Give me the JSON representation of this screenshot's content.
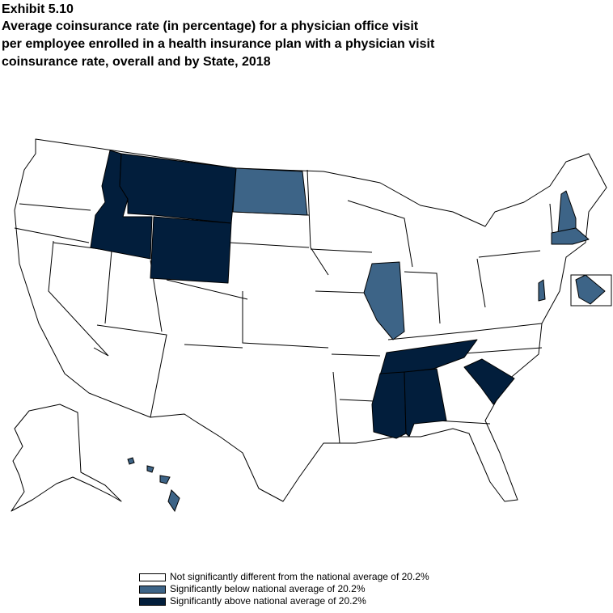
{
  "header": {
    "exhibit": "Exhibit 5.10",
    "title_lines": [
      "Average coinsurance rate (in percentage) for a physician office visit",
      "per employee enrolled in a health insurance plan with a physician visit",
      "coinsurance rate, overall and by State, 2018"
    ]
  },
  "colors": {
    "not_significant": "#ffffff",
    "below": "#3d6487",
    "above": "#021e3c"
  },
  "map": {
    "states_above": [
      "Idaho",
      "Montana",
      "Wyoming",
      "Tennessee",
      "Mississippi",
      "Alabama",
      "South Carolina"
    ],
    "states_below": [
      "North Dakota",
      "Illinois",
      "New Hampshire",
      "Massachusetts",
      "Delaware",
      "Hawaii",
      "District of Columbia"
    ]
  },
  "legend": {
    "items": [
      {
        "key": "not_significant",
        "label": "Not significantly different from the national average of 20.2%"
      },
      {
        "key": "below",
        "label": "Significantly below national average of 20.2%"
      },
      {
        "key": "above",
        "label": "Significantly above national average of 20.2%"
      }
    ]
  }
}
